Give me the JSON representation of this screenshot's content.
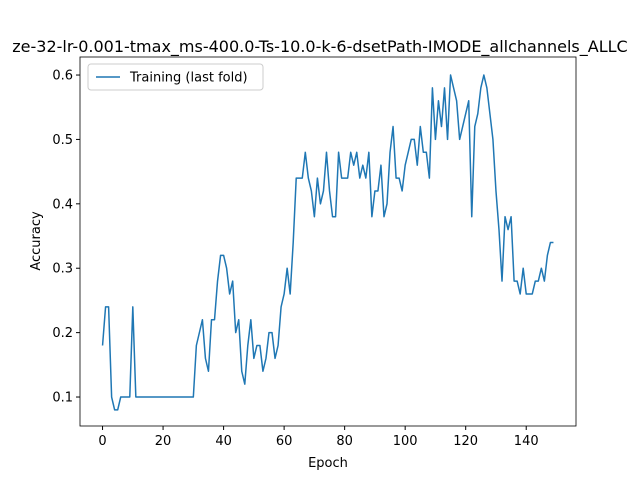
{
  "chart_data": {
    "type": "line",
    "title": "ze-32-lr-0.001-tmax_ms-400.0-Ts-10.0-k-6-dsetPath-IMODE_allchannels_ALLC",
    "x_label": "Epoch",
    "y_label": "Accuracy",
    "x": [
      0,
      1,
      2,
      3,
      4,
      5,
      6,
      7,
      8,
      9,
      10,
      11,
      12,
      13,
      14,
      15,
      16,
      17,
      18,
      19,
      20,
      21,
      22,
      23,
      24,
      25,
      26,
      27,
      28,
      29,
      30,
      31,
      32,
      33,
      34,
      35,
      36,
      37,
      38,
      39,
      40,
      41,
      42,
      43,
      44,
      45,
      46,
      47,
      48,
      49,
      50,
      51,
      52,
      53,
      54,
      55,
      56,
      57,
      58,
      59,
      60,
      61,
      62,
      63,
      64,
      65,
      66,
      67,
      68,
      69,
      70,
      71,
      72,
      73,
      74,
      75,
      76,
      77,
      78,
      79,
      80,
      81,
      82,
      83,
      84,
      85,
      86,
      87,
      88,
      89,
      90,
      91,
      92,
      93,
      94,
      95,
      96,
      97,
      98,
      99,
      100,
      101,
      102,
      103,
      104,
      105,
      106,
      107,
      108,
      109,
      110,
      111,
      112,
      113,
      114,
      115,
      116,
      117,
      118,
      119,
      120,
      121,
      122,
      123,
      124,
      125,
      126,
      127,
      128,
      129,
      130,
      131,
      132,
      133,
      134,
      135,
      136,
      137,
      138,
      139,
      140,
      141,
      142,
      143,
      144,
      145,
      146,
      147,
      148,
      149
    ],
    "series": [
      {
        "name": "Training (last fold)",
        "color": "#1f77b4",
        "values": [
          0.18,
          0.24,
          0.24,
          0.1,
          0.08,
          0.08,
          0.1,
          0.1,
          0.1,
          0.1,
          0.24,
          0.1,
          0.1,
          0.1,
          0.1,
          0.1,
          0.1,
          0.1,
          0.1,
          0.1,
          0.1,
          0.1,
          0.1,
          0.1,
          0.1,
          0.1,
          0.1,
          0.1,
          0.1,
          0.1,
          0.1,
          0.18,
          0.2,
          0.22,
          0.16,
          0.14,
          0.22,
          0.22,
          0.28,
          0.32,
          0.32,
          0.3,
          0.26,
          0.28,
          0.2,
          0.22,
          0.14,
          0.12,
          0.18,
          0.22,
          0.16,
          0.18,
          0.18,
          0.14,
          0.16,
          0.2,
          0.2,
          0.16,
          0.18,
          0.24,
          0.26,
          0.3,
          0.26,
          0.34,
          0.44,
          0.44,
          0.44,
          0.48,
          0.44,
          0.42,
          0.38,
          0.44,
          0.4,
          0.42,
          0.48,
          0.42,
          0.38,
          0.38,
          0.48,
          0.44,
          0.44,
          0.44,
          0.48,
          0.46,
          0.48,
          0.44,
          0.46,
          0.44,
          0.48,
          0.38,
          0.42,
          0.42,
          0.46,
          0.38,
          0.4,
          0.48,
          0.52,
          0.44,
          0.44,
          0.42,
          0.46,
          0.48,
          0.5,
          0.5,
          0.46,
          0.52,
          0.48,
          0.48,
          0.44,
          0.58,
          0.5,
          0.56,
          0.52,
          0.58,
          0.5,
          0.6,
          0.58,
          0.56,
          0.5,
          0.52,
          0.54,
          0.56,
          0.38,
          0.52,
          0.54,
          0.58,
          0.6,
          0.58,
          0.54,
          0.5,
          0.42,
          0.36,
          0.28,
          0.38,
          0.36,
          0.38,
          0.28,
          0.28,
          0.26,
          0.3,
          0.26,
          0.26,
          0.26,
          0.28,
          0.28,
          0.3,
          0.28,
          0.32,
          0.34,
          0.34
        ]
      }
    ],
    "xlim": [
      -7.45,
      156.45
    ],
    "ylim": [
      0.055,
      0.628
    ],
    "xticks": [
      0,
      20,
      40,
      60,
      80,
      100,
      120,
      140
    ],
    "yticks": [
      0.1,
      0.2,
      0.3,
      0.4,
      0.5,
      0.6
    ],
    "legend": "upper left",
    "grid": false
  }
}
